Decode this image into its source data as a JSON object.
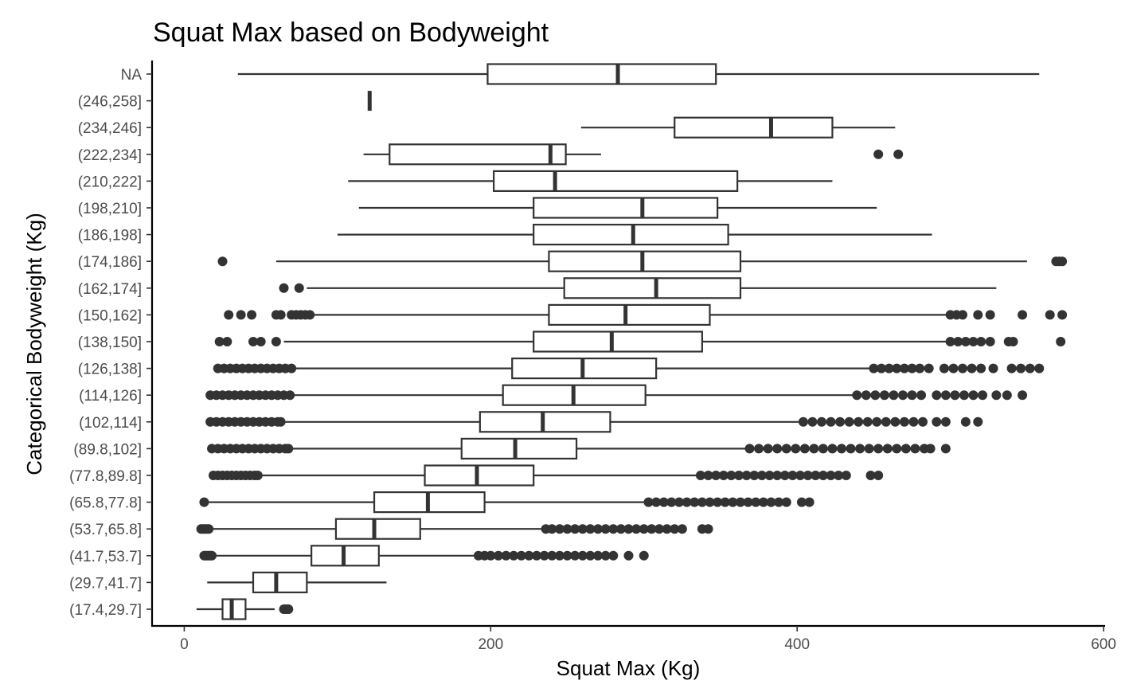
{
  "chart_data": {
    "type": "boxplot",
    "orientation": "horizontal",
    "title": "Squat Max based on Bodyweight",
    "xlabel": "Squat Max (Kg)",
    "ylabel": "Categorical Bodyweight (Kg)",
    "xlim": [
      -21,
      601
    ],
    "x_ticks": [
      0,
      200,
      400,
      600
    ],
    "grid": false,
    "legend": "none",
    "categories": [
      "(17.4,29.7]",
      "(29.7,41.7]",
      "(41.7,53.7]",
      "(53.7,65.8]",
      "(65.8,77.8]",
      "(77.8,89.8]",
      "(89.8,102]",
      "(102,114]",
      "(114,126]",
      "(126,138]",
      "(138,150]",
      "(150,162]",
      "(162,174]",
      "(174,186]",
      "(186,198]",
      "(198,210]",
      "(210,222]",
      "(222,234]",
      "(234,246]",
      "(246,258]",
      "NA"
    ],
    "boxes": [
      {
        "category": "(17.4,29.7]",
        "whisker_low": 8,
        "q1": 25,
        "median": 31,
        "q3": 40,
        "whisker_high": 59,
        "outliers": [
          65,
          66,
          67,
          68
        ]
      },
      {
        "category": "(29.7,41.7]",
        "whisker_low": 15,
        "q1": 45,
        "median": 60,
        "q3": 80,
        "whisker_high": 132,
        "outliers": []
      },
      {
        "category": "(41.7,53.7]",
        "whisker_low": 15,
        "q1": 83,
        "median": 104,
        "q3": 127,
        "whisker_high": 192,
        "outliers": [
          13,
          14,
          15,
          16,
          17,
          18,
          192,
          196,
          200,
          205,
          210,
          215,
          220,
          225,
          230,
          235,
          240,
          245,
          250,
          255,
          260,
          265,
          270,
          275,
          280,
          290,
          300
        ]
      },
      {
        "category": "(53.7,65.8]",
        "whisker_low": 18,
        "q1": 99,
        "median": 124,
        "q3": 154,
        "whisker_high": 234,
        "outliers": [
          11,
          12,
          13,
          14,
          15,
          16,
          236,
          240,
          245,
          250,
          255,
          260,
          265,
          270,
          275,
          280,
          285,
          290,
          295,
          300,
          305,
          310,
          315,
          320,
          325,
          338,
          342
        ]
      },
      {
        "category": "(65.8,77.8]",
        "whisker_low": 14,
        "q1": 124,
        "median": 159,
        "q3": 196,
        "whisker_high": 302,
        "outliers": [
          13,
          303,
          308,
          313,
          318,
          323,
          328,
          333,
          338,
          343,
          348,
          353,
          358,
          363,
          368,
          373,
          378,
          383,
          388,
          393,
          403,
          408
        ]
      },
      {
        "category": "(77.8,89.8]",
        "whisker_low": 20,
        "q1": 157,
        "median": 191,
        "q3": 228,
        "whisker_high": 337,
        "outliers": [
          19,
          22,
          25,
          28,
          31,
          34,
          37,
          40,
          43,
          46,
          48,
          337,
          342,
          347,
          352,
          357,
          362,
          367,
          372,
          377,
          382,
          387,
          392,
          397,
          402,
          407,
          412,
          417,
          422,
          427,
          432,
          448,
          453
        ]
      },
      {
        "category": "(89.8,102]",
        "whisker_low": 20,
        "q1": 181,
        "median": 216,
        "q3": 256,
        "whisker_high": 367,
        "outliers": [
          18,
          22,
          26,
          30,
          34,
          38,
          42,
          46,
          50,
          54,
          58,
          62,
          66,
          68,
          369,
          375,
          381,
          387,
          393,
          399,
          405,
          411,
          417,
          423,
          429,
          435,
          441,
          447,
          453,
          459,
          465,
          471,
          477,
          483,
          487,
          497
        ]
      },
      {
        "category": "(102,114]",
        "whisker_low": 18,
        "q1": 193,
        "median": 234,
        "q3": 278,
        "whisker_high": 404,
        "outliers": [
          17,
          21,
          25,
          29,
          33,
          37,
          41,
          45,
          49,
          53,
          57,
          61,
          63,
          404,
          410,
          416,
          422,
          428,
          434,
          440,
          446,
          452,
          458,
          464,
          470,
          476,
          482,
          491,
          497,
          510,
          518
        ]
      },
      {
        "category": "(114,126]",
        "whisker_low": 18,
        "q1": 208,
        "median": 254,
        "q3": 301,
        "whisker_high": 439,
        "outliers": [
          17,
          21,
          25,
          29,
          33,
          37,
          41,
          45,
          49,
          53,
          57,
          61,
          65,
          69,
          439,
          445,
          451,
          457,
          463,
          469,
          475,
          481,
          491,
          497,
          503,
          509,
          515,
          521,
          530,
          537,
          547
        ]
      },
      {
        "category": "(126,138]",
        "whisker_low": 23,
        "q1": 214,
        "median": 260,
        "q3": 308,
        "whisker_high": 450,
        "outliers": [
          22,
          26,
          30,
          34,
          38,
          42,
          46,
          50,
          54,
          58,
          62,
          66,
          70,
          450,
          455,
          460,
          465,
          470,
          475,
          480,
          486,
          496,
          502,
          508,
          514,
          520,
          528,
          540,
          546,
          552,
          558
        ]
      },
      {
        "category": "(138,150]",
        "whisker_low": 65,
        "q1": 228,
        "median": 279,
        "q3": 338,
        "whisker_high": 499,
        "outliers": [
          23,
          28,
          45,
          50,
          60,
          500,
          505,
          510,
          515,
          520,
          526,
          538,
          541,
          572
        ]
      },
      {
        "category": "(150,162]",
        "whisker_low": 84,
        "q1": 238,
        "median": 288,
        "q3": 343,
        "whisker_high": 497,
        "outliers": [
          29,
          37,
          44,
          60,
          63,
          70,
          73,
          76,
          79,
          82,
          500,
          504,
          508,
          518,
          526,
          547,
          565,
          573
        ]
      },
      {
        "category": "(162,174]",
        "whisker_low": 80,
        "q1": 248,
        "median": 308,
        "q3": 363,
        "whisker_high": 530,
        "outliers": [
          65,
          75
        ]
      },
      {
        "category": "(174,186]",
        "whisker_low": 60,
        "q1": 238,
        "median": 299,
        "q3": 363,
        "whisker_high": 550,
        "outliers": [
          25,
          569,
          571,
          573
        ]
      },
      {
        "category": "(186,198]",
        "whisker_low": 100,
        "q1": 228,
        "median": 293,
        "q3": 355,
        "whisker_high": 488,
        "outliers": []
      },
      {
        "category": "(198,210]",
        "whisker_low": 114,
        "q1": 228,
        "median": 299,
        "q3": 348,
        "whisker_high": 452,
        "outliers": []
      },
      {
        "category": "(210,222]",
        "whisker_low": 107,
        "q1": 202,
        "median": 242,
        "q3": 361,
        "whisker_high": 423,
        "outliers": []
      },
      {
        "category": "(222,234]",
        "whisker_low": 117,
        "q1": 134,
        "median": 239,
        "q3": 249,
        "whisker_high": 272,
        "outliers": [
          453,
          466
        ]
      },
      {
        "category": "(234,246]",
        "whisker_low": 259,
        "q1": 320,
        "median": 383,
        "q3": 423,
        "whisker_high": 464,
        "outliers": []
      },
      {
        "category": "(246,258]",
        "whisker_low": 121,
        "q1": 121,
        "median": 121,
        "q3": 121,
        "whisker_high": 121,
        "outliers": []
      },
      {
        "category": "NA",
        "whisker_low": 35,
        "q1": 198,
        "median": 283,
        "q3": 347,
        "whisker_high": 558,
        "outliers": []
      }
    ]
  }
}
